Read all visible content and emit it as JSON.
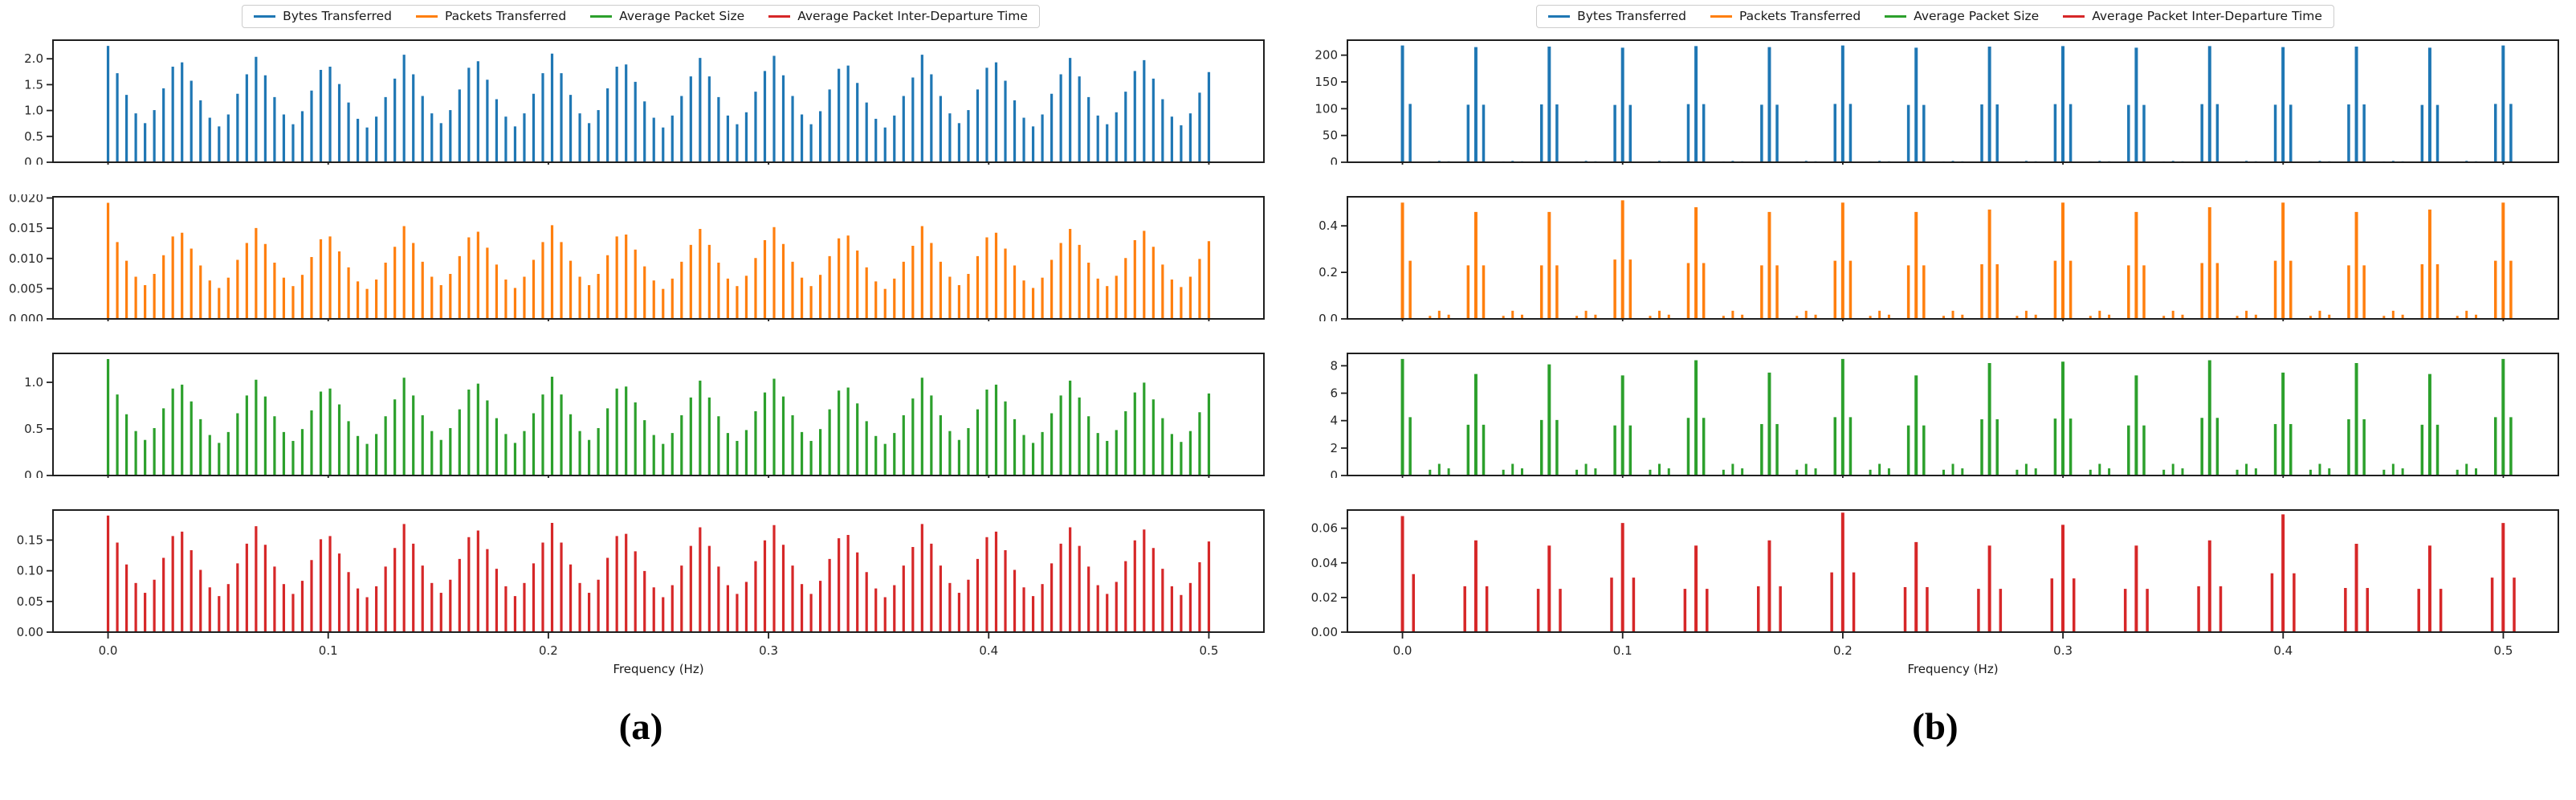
{
  "page": {
    "background": "#ffffff"
  },
  "legend": {
    "items": [
      {
        "label": "Bytes Transferred",
        "color": "#1f77b4"
      },
      {
        "label": "Packets Transferred",
        "color": "#ff7f0e"
      },
      {
        "label": "Average Packet Size",
        "color": "#2ca02c"
      },
      {
        "label": "Average Packet Inter-Departure Time",
        "color": "#d62728"
      }
    ]
  },
  "chart_data": [
    {
      "id": "a",
      "type": "bar",
      "caption": "(a)",
      "xlabel": "Frequency (Hz)",
      "style": "dense-harmonic-comb",
      "x_ticks": [
        0.0,
        0.1,
        0.2,
        0.3,
        0.4,
        0.5
      ],
      "x_tick_labels": [
        "0.0",
        "0.1",
        "0.2",
        "0.3",
        "0.4",
        "0.5"
      ],
      "xlim": [
        -0.025,
        0.525
      ],
      "n_bars": 120,
      "envelope_period_hz": 0.0336,
      "envelope_pattern": [
        1.0,
        0.82,
        0.62,
        0.45,
        0.36,
        0.48,
        0.68,
        0.88,
        0.92,
        0.75,
        0.57,
        0.41,
        0.33,
        0.44,
        0.63,
        0.81,
        0.97,
        0.8,
        0.6,
        0.44,
        0.35,
        0.47,
        0.66,
        0.85,
        0.88,
        0.72,
        0.55,
        0.4,
        0.32,
        0.42,
        0.6,
        0.77,
        0.99,
        0.81,
        0.61,
        0.45,
        0.36,
        0.48,
        0.67,
        0.87,
        0.93,
        0.76,
        0.58,
        0.42,
        0.33,
        0.45,
        0.63,
        0.82,
        1.0,
        0.82,
        0.62,
        0.45,
        0.36,
        0.48,
        0.68,
        0.88,
        0.9,
        0.74,
        0.56,
        0.41,
        0.32,
        0.43,
        0.61,
        0.79,
        0.96,
        0.79,
        0.6,
        0.43,
        0.35,
        0.46,
        0.65,
        0.84,
        0.98,
        0.8,
        0.61,
        0.44,
        0.35,
        0.47,
        0.67,
        0.86,
        0.89,
        0.73,
        0.55,
        0.4,
        0.32,
        0.43,
        0.61,
        0.78,
        0.99,
        0.81,
        0.61,
        0.45,
        0.36,
        0.48,
        0.67,
        0.87,
        0.92,
        0.75,
        0.57,
        0.41,
        0.33,
        0.44,
        0.63,
        0.81,
        0.96,
        0.79,
        0.6,
        0.43,
        0.35,
        0.46,
        0.65,
        0.84,
        0.94,
        0.77,
        0.58,
        0.42,
        0.34,
        0.45,
        0.64,
        0.83
      ],
      "panels": [
        {
          "series": "Bytes Transferred",
          "color": "#1f77b4",
          "dc": 2.25,
          "peak": 2.1,
          "ylim": [
            0,
            2.36
          ],
          "yticks": [
            [
              0,
              "0.0"
            ],
            [
              0.5,
              "0.5"
            ],
            [
              1.0,
              "1.0"
            ],
            [
              1.5,
              "1.5"
            ],
            [
              2.0,
              "2.0"
            ]
          ]
        },
        {
          "series": "Packets Transferred",
          "color": "#ff7f0e",
          "dc": 0.0192,
          "peak": 0.0155,
          "ylim": [
            0,
            0.0202
          ],
          "yticks": [
            [
              0,
              "0.000"
            ],
            [
              0.005,
              "0.005"
            ],
            [
              0.01,
              "0.010"
            ],
            [
              0.015,
              "0.015"
            ],
            [
              0.02,
              "0.020"
            ]
          ]
        },
        {
          "series": "Average Packet Size",
          "color": "#2ca02c",
          "dc": 1.25,
          "peak": 1.06,
          "ylim": [
            0,
            1.31
          ],
          "yticks": [
            [
              0,
              "0.0"
            ],
            [
              0.5,
              "0.5"
            ],
            [
              1.0,
              "1.0"
            ]
          ]
        },
        {
          "series": "Average Packet Inter-Departure Time",
          "color": "#d62728",
          "dc": 0.19,
          "peak": 0.178,
          "ylim": [
            0,
            0.199
          ],
          "yticks": [
            [
              0,
              "0.00"
            ],
            [
              0.05,
              "0.05"
            ],
            [
              0.1,
              "0.10"
            ],
            [
              0.15,
              "0.15"
            ]
          ]
        }
      ]
    },
    {
      "id": "b",
      "type": "bar",
      "caption": "(b)",
      "xlabel": "Frequency (Hz)",
      "style": "sparse-spike-groups",
      "x_ticks": [
        0.0,
        0.1,
        0.2,
        0.3,
        0.4,
        0.5
      ],
      "x_tick_labels": [
        "0.0",
        "0.1",
        "0.2",
        "0.3",
        "0.4",
        "0.5"
      ],
      "xlim": [
        -0.025,
        0.525
      ],
      "group_spacing": 0.03333,
      "dot_offsets": [
        0.0125,
        0.0167,
        0.021
      ],
      "panels": [
        {
          "series": "Bytes Transferred",
          "color": "#1f77b4",
          "mains": [
            218,
            215,
            216,
            214,
            217,
            215,
            218,
            214,
            216,
            217,
            214,
            217,
            215,
            216,
            214,
            218
          ],
          "side_ratio": 0.5,
          "side_offset": 0.0035,
          "dot_heights": [
            1.6,
            2.6,
            1.8
          ],
          "ylim": [
            0,
            228
          ],
          "yticks": [
            [
              0,
              "0"
            ],
            [
              50,
              "50"
            ],
            [
              100,
              "100"
            ],
            [
              150,
              "150"
            ],
            [
              200,
              "200"
            ]
          ]
        },
        {
          "series": "Packets Transferred",
          "color": "#ff7f0e",
          "mains": [
            0.5,
            0.46,
            0.46,
            0.51,
            0.48,
            0.46,
            0.5,
            0.46,
            0.47,
            0.5,
            0.46,
            0.48,
            0.5,
            0.46,
            0.47,
            0.5
          ],
          "side_ratio": 0.5,
          "side_offset": 0.0035,
          "dot_heights": [
            0.013,
            0.035,
            0.018
          ],
          "ylim": [
            0,
            0.525
          ],
          "yticks": [
            [
              0,
              "0.0"
            ],
            [
              0.2,
              "0.2"
            ],
            [
              0.4,
              "0.4"
            ]
          ]
        },
        {
          "series": "Average Packet Size",
          "color": "#2ca02c",
          "mains": [
            8.5,
            7.4,
            8.1,
            7.3,
            8.4,
            7.5,
            8.5,
            7.3,
            8.2,
            8.3,
            7.3,
            8.4,
            7.5,
            8.2,
            7.4,
            8.5
          ],
          "side_ratio": 0.5,
          "side_offset": 0.0035,
          "dot_heights": [
            0.42,
            0.85,
            0.52
          ],
          "ylim": [
            0,
            8.9
          ],
          "yticks": [
            [
              0,
              "0"
            ],
            [
              2,
              "2"
            ],
            [
              4,
              "4"
            ],
            [
              6,
              "6"
            ],
            [
              8,
              "8"
            ]
          ]
        },
        {
          "series": "Average Packet Inter-Departure Time",
          "color": "#d62728",
          "mains": [
            0.067,
            0.053,
            0.05,
            0.063,
            0.05,
            0.053,
            0.069,
            0.052,
            0.05,
            0.062,
            0.05,
            0.053,
            0.068,
            0.051,
            0.05,
            0.063
          ],
          "side_ratio": 0.5,
          "side_offset": 0.005,
          "dot_heights": [],
          "ylim": [
            0,
            0.0705
          ],
          "yticks": [
            [
              0,
              "0.00"
            ],
            [
              0.02,
              "0.02"
            ],
            [
              0.04,
              "0.04"
            ],
            [
              0.06,
              "0.06"
            ]
          ]
        }
      ]
    }
  ]
}
